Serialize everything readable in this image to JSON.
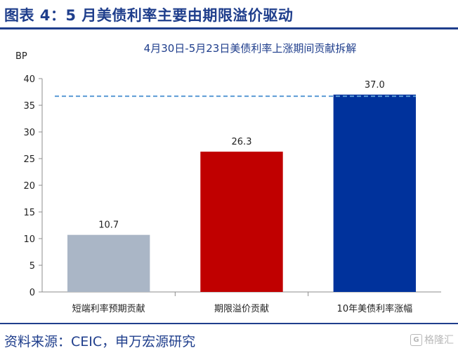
{
  "figure_title": "图表 4：5 月美债利率主要由期限溢价驱动",
  "source_note": "资料来源：CEIC，申万宏源研究",
  "watermark": {
    "logo": "G",
    "text": "格隆汇"
  },
  "colors": {
    "accent": "#1f3e8c",
    "reference_line": "#5b9bd5"
  },
  "chart_data": {
    "type": "bar",
    "title": "4月30日-5月23日美债利率上涨期间贡献拆解",
    "ylabel": "BP",
    "xlabel": "",
    "ylim": [
      0,
      40
    ],
    "yticks": [
      0,
      5,
      10,
      15,
      20,
      25,
      30,
      35,
      40
    ],
    "categories": [
      "短端利率预期贡献",
      "期限溢价贡献",
      "10年美债利率涨幅"
    ],
    "values": [
      10.7,
      26.3,
      37.0
    ],
    "data_labels": [
      "10.7",
      "26.3",
      "37.0"
    ],
    "bar_colors": [
      "#aab6c6",
      "#c00000",
      "#00329c"
    ],
    "reference_line": {
      "value": 36.7,
      "style": "dashed"
    },
    "grid": false,
    "legend": "none"
  }
}
